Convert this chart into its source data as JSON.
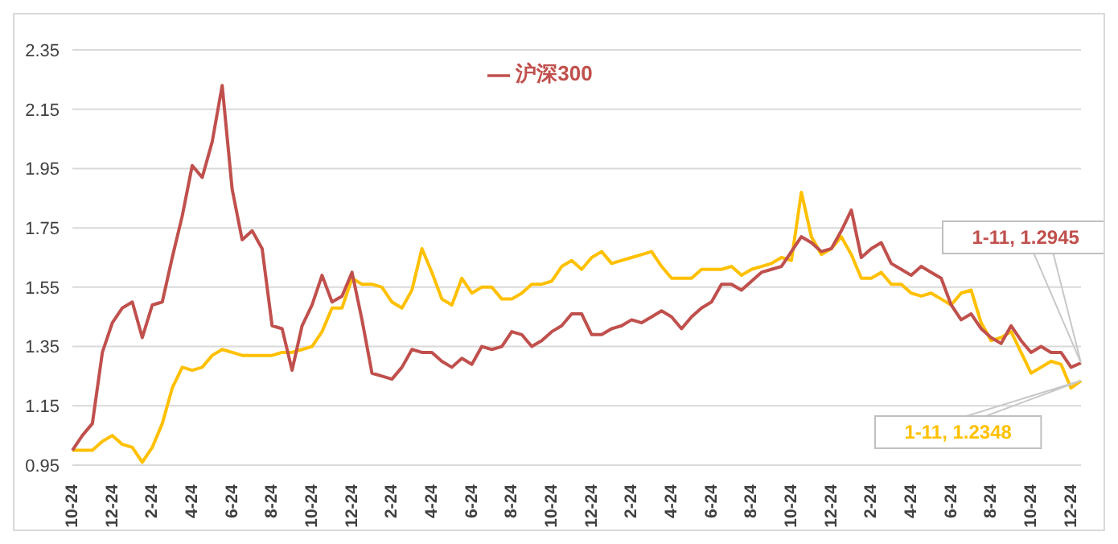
{
  "chart_data": {
    "type": "line",
    "categories": [
      "10-24",
      null,
      null,
      null,
      "12-24",
      null,
      null,
      null,
      "2-24",
      null,
      null,
      null,
      "4-24",
      null,
      null,
      null,
      "6-24",
      null,
      null,
      null,
      "8-24",
      null,
      null,
      null,
      "10-24",
      null,
      null,
      null,
      "12-24",
      null,
      null,
      null,
      "2-24",
      null,
      null,
      null,
      "4-24",
      null,
      null,
      null,
      "6-24",
      null,
      null,
      null,
      "8-24",
      null,
      null,
      null,
      "10-24",
      null,
      null,
      null,
      "12-24",
      null,
      null,
      null,
      "2-24",
      null,
      null,
      null,
      "4-24",
      null,
      null,
      null,
      "6-24",
      null,
      null,
      null,
      "8-24",
      null,
      null,
      null,
      "10-24",
      null,
      null,
      null,
      "12-24",
      null,
      null,
      null,
      "2-24",
      null,
      null,
      null,
      "4-24",
      null,
      null,
      null,
      "6-24",
      null,
      null,
      null,
      "8-24",
      null,
      null,
      null,
      "10-24",
      null,
      null,
      null,
      "12-24",
      null
    ],
    "ylim": [
      0.95,
      2.35
    ],
    "yticks": [
      0.95,
      1.15,
      1.35,
      1.55,
      1.75,
      1.95,
      2.15,
      2.35
    ],
    "grid": "y",
    "legend": "top",
    "marker": "none",
    "line_style": "solid",
    "series": [
      {
        "color": "#ffc000",
        "values": [
          1.0,
          1.0,
          1.0,
          1.03,
          1.05,
          1.02,
          1.01,
          0.96,
          1.01,
          1.09,
          1.21,
          1.28,
          1.27,
          1.28,
          1.32,
          1.34,
          1.33,
          1.32,
          1.32,
          1.32,
          1.32,
          1.33,
          1.33,
          1.34,
          1.35,
          1.4,
          1.48,
          1.48,
          1.58,
          1.56,
          1.56,
          1.55,
          1.5,
          1.48,
          1.54,
          1.68,
          1.6,
          1.51,
          1.49,
          1.58,
          1.53,
          1.55,
          1.55,
          1.51,
          1.51,
          1.53,
          1.56,
          1.56,
          1.57,
          1.62,
          1.64,
          1.61,
          1.65,
          1.67,
          1.63,
          1.64,
          1.65,
          1.66,
          1.67,
          1.62,
          1.58,
          1.58,
          1.58,
          1.61,
          1.61,
          1.61,
          1.62,
          1.59,
          1.61,
          1.62,
          1.63,
          1.65,
          1.64,
          1.87,
          1.72,
          1.66,
          1.68,
          1.72,
          1.66,
          1.58,
          1.58,
          1.6,
          1.56,
          1.56,
          1.53,
          1.52,
          1.53,
          1.51,
          1.49,
          1.53,
          1.54,
          1.43,
          1.37,
          1.38,
          1.4,
          1.33,
          1.26,
          1.28,
          1.3,
          1.29,
          1.21,
          1.2348
        ]
      },
      {
        "name": "沪深300",
        "color": "#c0504d",
        "values": [
          1.0,
          1.05,
          1.09,
          1.33,
          1.43,
          1.48,
          1.5,
          1.38,
          1.49,
          1.5,
          1.65,
          1.79,
          1.96,
          1.92,
          2.04,
          2.23,
          1.88,
          1.71,
          1.74,
          1.68,
          1.42,
          1.41,
          1.27,
          1.42,
          1.49,
          1.59,
          1.5,
          1.52,
          1.6,
          1.44,
          1.26,
          1.25,
          1.24,
          1.28,
          1.34,
          1.33,
          1.33,
          1.3,
          1.28,
          1.31,
          1.29,
          1.35,
          1.34,
          1.35,
          1.4,
          1.39,
          1.35,
          1.37,
          1.4,
          1.42,
          1.46,
          1.46,
          1.39,
          1.39,
          1.41,
          1.42,
          1.44,
          1.43,
          1.45,
          1.47,
          1.45,
          1.41,
          1.45,
          1.48,
          1.5,
          1.56,
          1.56,
          1.54,
          1.57,
          1.6,
          1.61,
          1.62,
          1.67,
          1.72,
          1.7,
          1.67,
          1.68,
          1.74,
          1.81,
          1.65,
          1.68,
          1.7,
          1.63,
          1.61,
          1.59,
          1.62,
          1.6,
          1.58,
          1.49,
          1.44,
          1.46,
          1.41,
          1.38,
          1.36,
          1.42,
          1.37,
          1.33,
          1.35,
          1.33,
          1.33,
          1.28,
          1.2945
        ]
      }
    ],
    "annotations": [
      "1-11, 1.2348",
      "1-11, 1.2945"
    ]
  }
}
